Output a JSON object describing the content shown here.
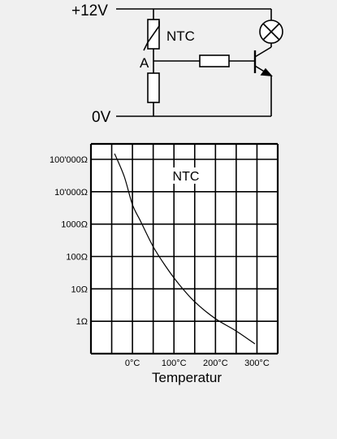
{
  "circuit": {
    "supply_label": "+12V",
    "ground_label": "0V",
    "ntc_label": "NTC",
    "node_label": "A"
  },
  "chart_data": {
    "type": "line",
    "annotation": "NTC",
    "xlabel": "Temperatur",
    "x_tick_labels": [
      "0°C",
      "100°C",
      "200°C",
      "300°C"
    ],
    "x_tick_values": [
      0,
      100,
      200,
      300
    ],
    "y_tick_labels": [
      "1Ω",
      "10Ω",
      "100Ω",
      "1000Ω",
      "10'000Ω",
      "100'000Ω"
    ],
    "y_scale": "log",
    "y_tick_values": [
      1,
      10,
      100,
      1000,
      10000,
      100000
    ],
    "xlim": [
      -100,
      350
    ],
    "ylim": [
      0.1,
      300000
    ],
    "grid": true,
    "series": [
      {
        "x": [
          -43,
          -20,
          0,
          20,
          50,
          80,
          110,
          150,
          200,
          250,
          295
        ],
        "y": [
          150000,
          30000,
          4000,
          1200,
          200,
          50,
          15,
          4,
          1.2,
          0.5,
          0.2
        ]
      }
    ]
  }
}
